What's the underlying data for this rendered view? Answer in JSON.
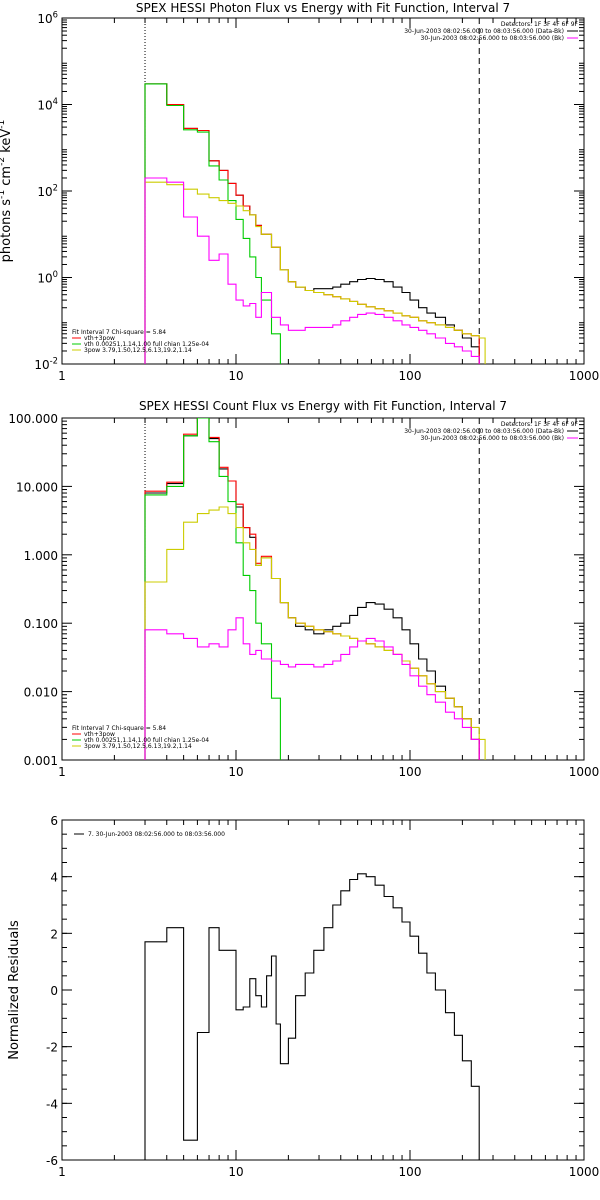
{
  "chart_data": [
    {
      "type": "line",
      "title": "SPEX HESSI Photon Flux vs Energy with Fit Function, Interval 7",
      "ylabel": "photons s$^{-1}$ cm$^{-2}$ keV$^{-1}$",
      "xlabel": "",
      "xlog": true,
      "ylog": true,
      "xlim": [
        1,
        1000
      ],
      "ylim": [
        0.01,
        1000000
      ],
      "x_ticks": [
        "1",
        "10",
        "100",
        "1000"
      ],
      "y_ticks": [
        "10$^{-2}$",
        "10$^{0}$",
        "10$^{2}$",
        "10$^{4}$",
        "10$^{6}$"
      ],
      "y_tick_values": [
        0.01,
        1,
        100,
        10000,
        1000000
      ],
      "legend_top": [
        {
          "text": "Detectors: 1F 3F 4F 6F 9F",
          "color": ""
        },
        {
          "text": "30-Jun-2003 08:02:56.000 to 08:03:56.000 (Data-Bk)",
          "color": "#000000"
        },
        {
          "text": "30-Jun-2003 08:02:56.000 to 08:03:56.000 (Bk)",
          "color": "#ff00ff"
        }
      ],
      "legend_bottom": [
        {
          "text": "Fit Interval 7   Chi-square = 5.84",
          "color": ""
        },
        {
          "text": "vth+3pow",
          "color": "#ff0000"
        },
        {
          "text": "vth 0.00251,1.14,1.00  full chian 1.25e-04",
          "color": "#00cc00"
        },
        {
          "text": "3pow 3.79,1.50,12.5,6.13,19.2,1.14",
          "color": "#cccc00"
        }
      ],
      "vlines": [
        {
          "x": 3,
          "style": "dotted"
        },
        {
          "x": 250,
          "style": "dashed"
        }
      ],
      "series": [
        {
          "color": "#000000",
          "edges": [
            3,
            4,
            5,
            6,
            7,
            8,
            9,
            10,
            11,
            12,
            13,
            14,
            16,
            18,
            20,
            22,
            25,
            28,
            32,
            36,
            40,
            45,
            50,
            56,
            63,
            71,
            80,
            90,
            100,
            112,
            125,
            140,
            160,
            180,
            200,
            225,
            250
          ],
          "values": [
            30000,
            10000,
            2800,
            2500,
            500,
            300,
            150,
            80,
            45,
            28,
            16,
            10,
            5,
            1.5,
            0.8,
            0.6,
            0.5,
            0.55,
            0.55,
            0.6,
            0.7,
            0.8,
            0.9,
            0.95,
            0.9,
            0.8,
            0.6,
            0.45,
            0.3,
            0.2,
            0.15,
            0.12,
            0.08,
            0.06,
            0.04,
            0.025
          ]
        },
        {
          "color": "#ff0000",
          "edges": [
            3,
            4,
            5,
            6,
            7,
            8,
            9,
            10,
            11,
            12,
            13,
            14,
            16,
            18,
            20,
            22,
            25,
            28,
            32,
            36,
            40,
            45,
            50,
            56,
            63,
            71,
            80,
            90,
            100,
            112,
            125,
            140,
            160,
            180,
            200,
            225,
            250
          ],
          "values": [
            30000,
            10000,
            2800,
            2500,
            500,
            300,
            150,
            80,
            45,
            28,
            16,
            10,
            5,
            1.5,
            0.8,
            0.6,
            0.5,
            0.45,
            0.4,
            0.36,
            0.32,
            0.28,
            0.24,
            0.21,
            0.19,
            0.17,
            0.15,
            0.13,
            0.12,
            0.1,
            0.09,
            0.08,
            0.07,
            0.06,
            0.05,
            0.045
          ]
        },
        {
          "color": "#00cc00",
          "edges": [
            3,
            4,
            5,
            6,
            7,
            8,
            9,
            10,
            11,
            12,
            13,
            14,
            16,
            18,
            20
          ],
          "values": [
            30000,
            9500,
            2600,
            2300,
            380,
            180,
            60,
            22,
            8,
            3,
            1,
            0.3,
            0.05,
            0.005
          ]
        },
        {
          "color": "#cccc00",
          "edges": [
            3,
            4,
            5,
            6,
            7,
            8,
            9,
            10,
            11,
            12,
            13,
            14,
            16,
            18,
            20,
            22,
            25,
            28,
            32,
            36,
            40,
            45,
            50,
            56,
            63,
            71,
            80,
            90,
            100,
            112,
            125,
            140,
            160,
            180,
            200,
            225,
            250,
            270
          ],
          "values": [
            160,
            140,
            110,
            85,
            70,
            60,
            52,
            45,
            35,
            28,
            15,
            10,
            5,
            1.5,
            0.8,
            0.6,
            0.5,
            0.45,
            0.4,
            0.36,
            0.32,
            0.28,
            0.24,
            0.21,
            0.19,
            0.17,
            0.15,
            0.13,
            0.12,
            0.1,
            0.09,
            0.08,
            0.07,
            0.06,
            0.05,
            0.045,
            0.04
          ]
        },
        {
          "color": "#ff00ff",
          "edges": [
            3,
            4,
            5,
            6,
            7,
            8,
            9,
            10,
            11,
            12,
            13,
            14,
            16,
            18,
            20,
            22,
            25,
            28,
            32,
            36,
            40,
            45,
            50,
            56,
            63,
            71,
            80,
            90,
            100,
            112,
            125,
            140,
            160,
            180,
            200,
            225,
            250
          ],
          "values": [
            200,
            160,
            25,
            9,
            2.5,
            3.5,
            0.7,
            0.3,
            0.22,
            0.25,
            0.12,
            0.45,
            0.12,
            0.08,
            0.06,
            0.06,
            0.07,
            0.07,
            0.07,
            0.08,
            0.1,
            0.12,
            0.14,
            0.15,
            0.14,
            0.12,
            0.1,
            0.08,
            0.07,
            0.06,
            0.05,
            0.04,
            0.03,
            0.025,
            0.02,
            0.015
          ]
        }
      ]
    },
    {
      "type": "line",
      "title": "SPEX HESSI Count Flux vs Energy with Fit Function, Interval 7",
      "ylabel": "",
      "xlabel": "",
      "xlog": true,
      "ylog": true,
      "xlim": [
        1,
        1000
      ],
      "ylim": [
        0.001,
        100
      ],
      "x_ticks": [
        "1",
        "10",
        "100",
        "1000"
      ],
      "y_ticks": [
        "0.001",
        "0.010",
        "0.100",
        "1.000",
        "10.000",
        "100.000"
      ],
      "y_tick_values": [
        0.001,
        0.01,
        0.1,
        1,
        10,
        100
      ],
      "legend_top": [
        {
          "text": "Detectors: 1F 3F 4F 6F 9F",
          "color": ""
        },
        {
          "text": "30-Jun-2003 08:02:56.000 to 08:03:56.000 (Data-Bk)",
          "color": "#000000"
        },
        {
          "text": "30-Jun-2003 08:02:56.000 to 08:03:56.000 (Bk)",
          "color": "#ff00ff"
        }
      ],
      "legend_bottom": [
        {
          "text": "Fit Interval 7   Chi-square = 5.84",
          "color": ""
        },
        {
          "text": "vth+3pow",
          "color": "#ff0000"
        },
        {
          "text": "vth 0.00251,1.14,1.00  full chian 1.25e-04",
          "color": "#00cc00"
        },
        {
          "text": "3pow 3.79,1.50,12.5,6.13,19.2,1.14",
          "color": "#cccc00"
        }
      ],
      "vlines": [
        {
          "x": 3,
          "style": "dotted"
        },
        {
          "x": 250,
          "style": "dashed"
        }
      ],
      "series": [
        {
          "color": "#000000",
          "edges": [
            3,
            4,
            5,
            6,
            7,
            8,
            9,
            10,
            11,
            12,
            13,
            14,
            16,
            18,
            20,
            22,
            25,
            28,
            32,
            36,
            40,
            45,
            50,
            56,
            63,
            71,
            80,
            90,
            100,
            112,
            125,
            140,
            160,
            180,
            200,
            225,
            250
          ],
          "values": [
            8,
            11,
            55,
            100,
            50,
            18,
            12,
            5,
            2.5,
            1.8,
            0.7,
            0.9,
            0.45,
            0.2,
            0.12,
            0.09,
            0.08,
            0.07,
            0.08,
            0.09,
            0.1,
            0.13,
            0.17,
            0.2,
            0.19,
            0.16,
            0.12,
            0.08,
            0.05,
            0.03,
            0.02,
            0.012,
            0.008,
            0.006,
            0.004,
            0.002
          ]
        },
        {
          "color": "#ff0000",
          "edges": [
            3,
            4,
            5,
            6,
            7,
            8,
            9,
            10,
            11,
            12,
            13,
            14,
            16,
            18,
            20,
            22,
            25,
            28,
            32,
            36,
            40,
            45,
            50,
            56,
            63,
            71,
            80,
            90,
            100,
            112,
            125,
            140,
            160,
            180,
            200,
            225,
            250
          ],
          "values": [
            8.5,
            11.5,
            58,
            105,
            52,
            19,
            12,
            5.5,
            2.5,
            2,
            0.75,
            0.95,
            0.45,
            0.2,
            0.12,
            0.1,
            0.09,
            0.08,
            0.075,
            0.07,
            0.065,
            0.06,
            0.055,
            0.05,
            0.045,
            0.04,
            0.035,
            0.028,
            0.022,
            0.017,
            0.013,
            0.01,
            0.008,
            0.006,
            0.004,
            0.002
          ]
        },
        {
          "color": "#00cc00",
          "edges": [
            3,
            4,
            5,
            6,
            7,
            8,
            9,
            10,
            11,
            12,
            13,
            14,
            16,
            18
          ],
          "values": [
            7.5,
            10,
            55,
            100,
            45,
            14,
            6,
            1.5,
            0.5,
            0.3,
            0.1,
            0.05,
            0.008
          ]
        },
        {
          "color": "#cccc00",
          "edges": [
            3,
            4,
            5,
            6,
            7,
            8,
            9,
            10,
            11,
            12,
            13,
            14,
            16,
            18,
            20,
            22,
            25,
            28,
            32,
            36,
            40,
            45,
            50,
            56,
            63,
            71,
            80,
            90,
            100,
            112,
            125,
            140,
            160,
            180,
            200,
            225,
            250,
            270
          ],
          "values": [
            0.4,
            1.2,
            3,
            4,
            4.5,
            5,
            4,
            2.5,
            1.5,
            1.2,
            0.7,
            0.9,
            0.45,
            0.2,
            0.12,
            0.1,
            0.09,
            0.08,
            0.075,
            0.07,
            0.065,
            0.06,
            0.055,
            0.05,
            0.045,
            0.04,
            0.035,
            0.028,
            0.022,
            0.017,
            0.013,
            0.01,
            0.008,
            0.006,
            0.004,
            0.003,
            0.002
          ]
        },
        {
          "color": "#ff00ff",
          "edges": [
            3,
            4,
            5,
            6,
            7,
            8,
            9,
            10,
            11,
            12,
            13,
            14,
            16,
            18,
            20,
            22,
            25,
            28,
            32,
            36,
            40,
            45,
            50,
            56,
            63,
            71,
            80,
            90,
            100,
            112,
            125,
            140,
            160,
            180,
            200,
            225,
            250
          ],
          "values": [
            0.08,
            0.07,
            0.06,
            0.045,
            0.05,
            0.045,
            0.08,
            0.12,
            0.05,
            0.035,
            0.04,
            0.03,
            0.028,
            0.025,
            0.023,
            0.025,
            0.025,
            0.023,
            0.025,
            0.028,
            0.035,
            0.045,
            0.055,
            0.06,
            0.055,
            0.045,
            0.035,
            0.025,
            0.017,
            0.012,
            0.009,
            0.007,
            0.005,
            0.004,
            0.003,
            0.002
          ]
        }
      ]
    },
    {
      "type": "line",
      "title": "",
      "ylabel": "Normalized Residuals",
      "xlabel": "",
      "xlog": true,
      "ylog": false,
      "xlim": [
        1,
        1000
      ],
      "ylim": [
        -6,
        6
      ],
      "x_ticks": [
        "1",
        "10",
        "100",
        "1000"
      ],
      "y_ticks": [
        "-6",
        "-4",
        "-2",
        "0",
        "2",
        "4",
        "6"
      ],
      "y_tick_values": [
        -6,
        -4,
        -2,
        0,
        2,
        4,
        6
      ],
      "legend_top": [
        {
          "text": "7. 30-Jun-2003 08:02:56.000 to 08:03:56.000",
          "color": "#000000"
        }
      ],
      "legend_bottom": [],
      "vlines": [],
      "series": [
        {
          "color": "#000000",
          "edges": [
            3,
            4,
            5,
            6,
            7,
            8,
            9,
            10,
            11,
            12,
            13,
            14,
            15,
            16,
            17,
            18,
            20,
            22,
            25,
            28,
            32,
            36,
            40,
            45,
            50,
            56,
            63,
            71,
            80,
            90,
            100,
            112,
            125,
            140,
            160,
            180,
            200,
            225,
            250
          ],
          "values": [
            1.7,
            2.2,
            -5.3,
            -1.5,
            2.2,
            1.4,
            1.4,
            -0.7,
            -0.6,
            0.4,
            -0.2,
            -0.6,
            0.5,
            1.2,
            -1.2,
            -2.6,
            -1.7,
            -0.2,
            0.6,
            1.4,
            2.2,
            3.0,
            3.5,
            3.9,
            4.1,
            4.0,
            3.7,
            3.3,
            2.9,
            2.4,
            1.9,
            1.3,
            0.6,
            0,
            -0.8,
            -1.6,
            -2.5,
            -3.4
          ]
        }
      ]
    }
  ]
}
